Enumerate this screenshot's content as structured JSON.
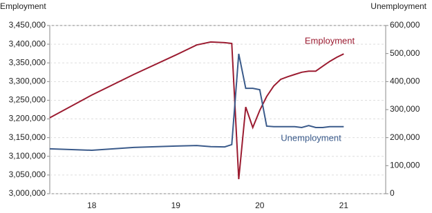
{
  "chart_data": {
    "type": "line",
    "ylabel": "Employment",
    "y2label": "Unemployment",
    "x": [
      2018,
      2018.5,
      2019,
      2019.5,
      2019.75,
      2019.917,
      2020.083,
      2020.167,
      2020.25,
      2020.333,
      2020.417,
      2020.5,
      2020.583,
      2020.667,
      2020.75,
      2020.833,
      2020.917,
      2021,
      2021.083,
      2021.167,
      2021.25,
      2021.333,
      2021.417,
      2021.5
    ],
    "series": [
      {
        "name": "Employment",
        "color": "#9b1b30",
        "values": [
          3203000,
          3264000,
          3319000,
          3371000,
          3398000,
          3406000,
          3404000,
          3402000,
          3039000,
          3232000,
          3177000,
          3223000,
          3260000,
          3288000,
          3306000,
          3313000,
          3319000,
          3325000,
          3328000,
          3328000,
          3341000,
          3354000,
          3365000,
          3374000
        ]
      },
      {
        "name": "Unemployment",
        "color": "#3a5a8a",
        "axis": "y2",
        "values": [
          160000,
          155000,
          165000,
          170000,
          172000,
          168000,
          167000,
          175000,
          499000,
          376000,
          376000,
          371000,
          241000,
          239000,
          239000,
          239000,
          239000,
          236000,
          243000,
          236000,
          236000,
          239000,
          239000,
          239000
        ]
      }
    ],
    "xlim": [
      2018,
      2022
    ],
    "xticks": [
      {
        "value": 2018.5,
        "label": "18"
      },
      {
        "value": 2019.5,
        "label": "19"
      },
      {
        "value": 2020.5,
        "label": "20"
      },
      {
        "value": 2021.5,
        "label": "21"
      }
    ],
    "ylim": [
      3000000,
      3450000
    ],
    "yticks": [
      {
        "value": 3000000,
        "label": "3,000,000"
      },
      {
        "value": 3050000,
        "label": "3,050,000"
      },
      {
        "value": 3100000,
        "label": "3,100,000"
      },
      {
        "value": 3150000,
        "label": "3,150,000"
      },
      {
        "value": 3200000,
        "label": "3,200,000"
      },
      {
        "value": 3250000,
        "label": "3,250,000"
      },
      {
        "value": 3300000,
        "label": "3,300,000"
      },
      {
        "value": 3350000,
        "label": "3,350,000"
      },
      {
        "value": 3400000,
        "label": "3,400,000"
      },
      {
        "value": 3450000,
        "label": "3,450,000"
      }
    ],
    "y2lim": [
      0,
      600000
    ],
    "y2ticks": [
      0,
      {
        "value": 100000,
        "label": "100,000"
      },
      {
        "value": 200000,
        "label": "200,000"
      },
      {
        "value": 300000,
        "label": "300,000"
      },
      {
        "value": 400000,
        "label": "400,000"
      },
      {
        "value": 500000,
        "label": "500,000"
      },
      {
        "value": 600000,
        "label": "600,000"
      }
    ],
    "grid": true
  }
}
